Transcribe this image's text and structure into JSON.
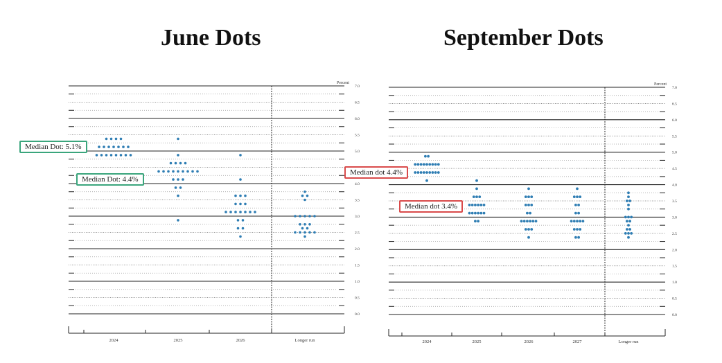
{
  "titles": {
    "june": "June Dots",
    "september": "September Dots"
  },
  "colors": {
    "dot": "#2e7db3",
    "green_label": "#3aa57c",
    "red_label": "#d94a4a"
  },
  "chart_data": [
    {
      "type": "scatter",
      "title": "June Dots",
      "ylabel": "Percent",
      "ylim": [
        0,
        7
      ],
      "yticks": [
        "0.0",
        "0.5",
        "1.0",
        "1.5",
        "2.0",
        "2.5",
        "3.0",
        "3.5",
        "4.0",
        "4.5",
        "5.0",
        "5.5",
        "6.0",
        "6.5",
        "7.0"
      ],
      "categories": [
        "2024",
        "2025",
        "2026",
        "Longer run"
      ],
      "dots": [
        [
          [
            5.375,
            4
          ],
          [
            5.125,
            7
          ],
          [
            4.875,
            8
          ]
        ],
        [
          [
            5.375,
            1
          ],
          [
            4.875,
            1
          ],
          [
            4.625,
            4
          ],
          [
            4.375,
            9
          ],
          [
            4.125,
            3
          ],
          [
            3.875,
            2
          ],
          [
            3.625,
            1
          ],
          [
            2.875,
            1
          ]
        ],
        [
          [
            4.875,
            1
          ],
          [
            4.125,
            1
          ],
          [
            3.625,
            3
          ],
          [
            3.375,
            3
          ],
          [
            3.125,
            7
          ],
          [
            2.875,
            2
          ],
          [
            2.625,
            2
          ],
          [
            2.375,
            1
          ]
        ],
        [
          [
            3.75,
            1
          ],
          [
            3.625,
            2
          ],
          [
            3.5,
            1
          ],
          [
            3.0,
            5
          ],
          [
            2.75,
            3
          ],
          [
            2.625,
            2
          ],
          [
            2.5,
            5
          ],
          [
            2.375,
            1
          ]
        ]
      ],
      "annotations": [
        {
          "text": "Median Dot: 5.1%",
          "value": 5.125
        },
        {
          "text": "Median Dot: 4.4%",
          "value": 4.375
        }
      ]
    },
    {
      "type": "scatter",
      "title": "September Dots",
      "ylabel": "Percent",
      "ylim": [
        0,
        7
      ],
      "yticks": [
        "0.0",
        "0.5",
        "1.0",
        "1.5",
        "2.0",
        "2.5",
        "3.0",
        "3.5",
        "4.0",
        "4.5",
        "5.0",
        "5.5",
        "6.0",
        "6.5",
        "7.0"
      ],
      "categories": [
        "2024",
        "2025",
        "2026",
        "2027",
        "Longer run"
      ],
      "dots": [
        [
          [
            4.875,
            2
          ],
          [
            4.625,
            9
          ],
          [
            4.375,
            9
          ],
          [
            4.125,
            1
          ]
        ],
        [
          [
            4.125,
            1
          ],
          [
            3.875,
            1
          ],
          [
            3.625,
            3
          ],
          [
            3.375,
            6
          ],
          [
            3.125,
            6
          ],
          [
            2.875,
            2
          ]
        ],
        [
          [
            3.875,
            1
          ],
          [
            3.625,
            3
          ],
          [
            3.375,
            3
          ],
          [
            3.125,
            2
          ],
          [
            2.875,
            6
          ],
          [
            2.625,
            3
          ],
          [
            2.375,
            1
          ]
        ],
        [
          [
            3.875,
            1
          ],
          [
            3.625,
            3
          ],
          [
            3.375,
            2
          ],
          [
            3.125,
            2
          ],
          [
            2.875,
            5
          ],
          [
            2.625,
            3
          ],
          [
            2.375,
            2
          ]
        ],
        [
          [
            3.75,
            1
          ],
          [
            3.625,
            1
          ],
          [
            3.5,
            2
          ],
          [
            3.375,
            1
          ],
          [
            3.25,
            1
          ],
          [
            3.0,
            3
          ],
          [
            2.875,
            2
          ],
          [
            2.75,
            1
          ],
          [
            2.625,
            2
          ],
          [
            2.5,
            3
          ],
          [
            2.375,
            1
          ]
        ]
      ],
      "annotations": [
        {
          "text": "Median dot 4.4%",
          "value": 4.375
        },
        {
          "text": "Median dot 3.4%",
          "value": 3.375
        }
      ]
    }
  ]
}
